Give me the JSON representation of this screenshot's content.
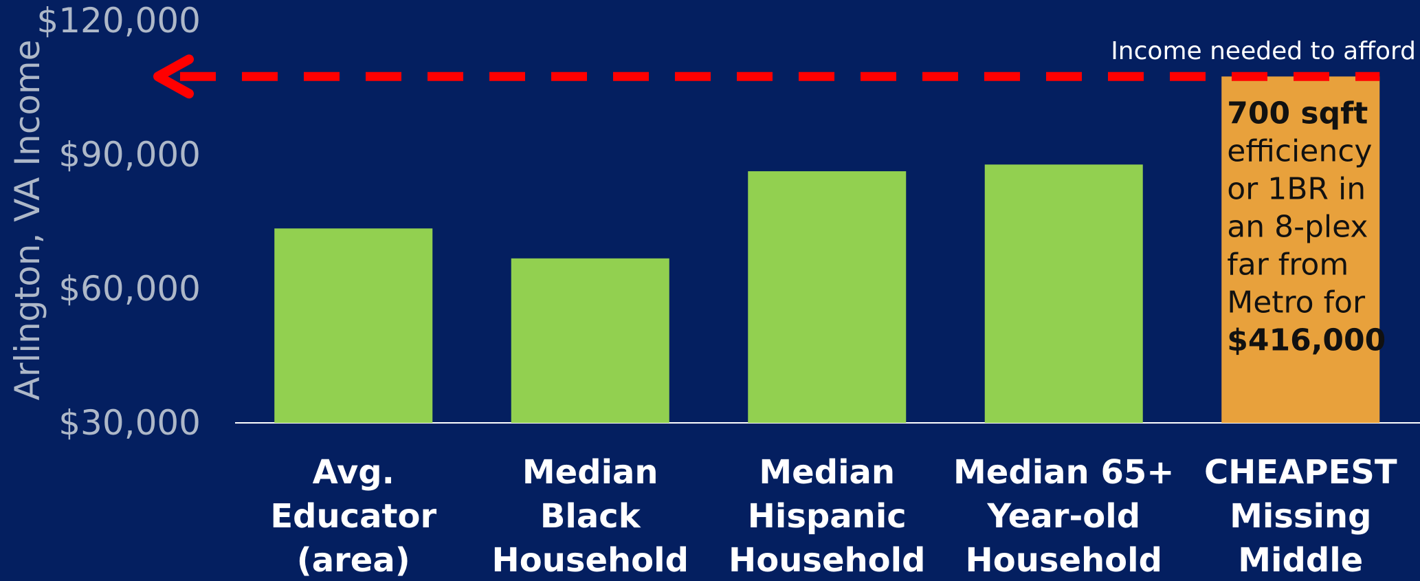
{
  "chart_data": {
    "type": "bar",
    "ylabel": "Arlington, VA Income",
    "ylim": [
      30000,
      120000
    ],
    "yticks": [
      30000,
      60000,
      90000,
      120000
    ],
    "ytick_labels": [
      "$30,000",
      "$60,000",
      "$90,000",
      "$120,000"
    ],
    "categories": [
      [
        "Avg.",
        "Educator",
        "(area)"
      ],
      [
        "Median",
        "Black",
        "Household"
      ],
      [
        "Median",
        "Hispanic",
        "Household"
      ],
      [
        "Median 65+",
        "Year-old",
        "Household"
      ],
      [
        "CHEAPEST",
        "Missing",
        "Middle"
      ]
    ],
    "values": [
      73500,
      66800,
      86300,
      87800,
      107500
    ],
    "bar_colors": [
      "#92d050",
      "#92d050",
      "#92d050",
      "#92d050",
      "#e8a13c"
    ],
    "reference_line": {
      "value": 107500,
      "label": "Income needed to afford",
      "color": "#ff0000"
    },
    "highlight_bar_text": [
      {
        "text": "700 sqft",
        "bold": true
      },
      {
        "text": "efficiency",
        "bold": false
      },
      {
        "text": "or 1BR in",
        "bold": false
      },
      {
        "text": "an 8-plex",
        "bold": false
      },
      {
        "text": "far from",
        "bold": false
      },
      {
        "text": "Metro for",
        "bold": false
      },
      {
        "text": "$416,000",
        "bold": true
      }
    ],
    "grid": false,
    "legend": "none"
  }
}
